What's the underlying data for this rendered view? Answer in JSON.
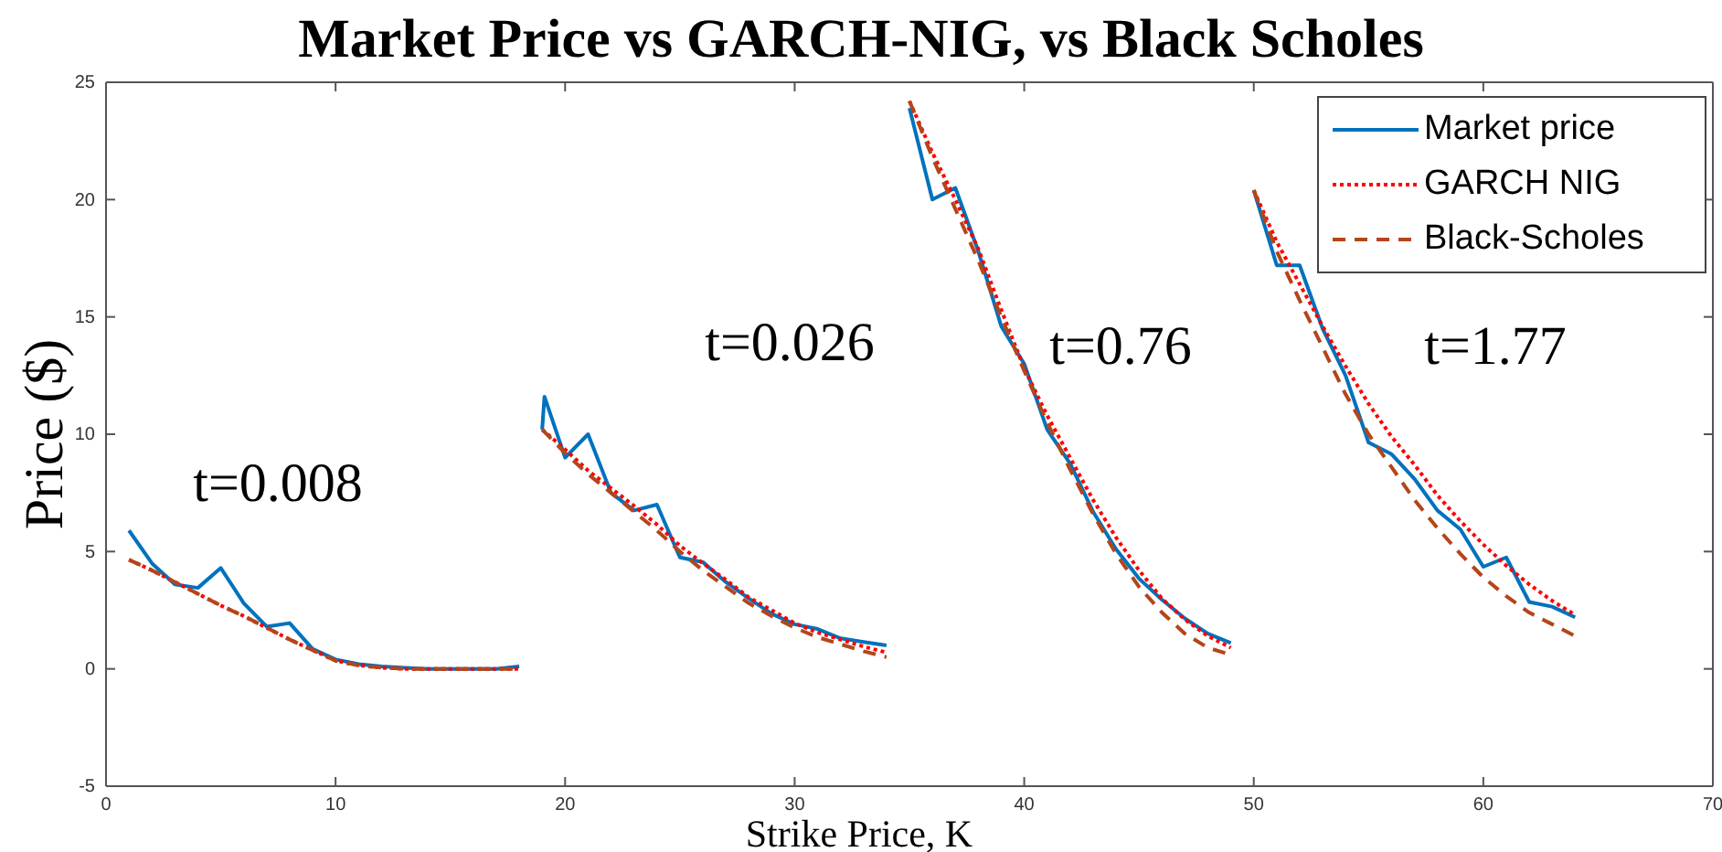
{
  "chart_data": {
    "type": "line",
    "title": "Market Price vs GARCH-NIG, vs Black Scholes",
    "xlabel": "Strike Price, K",
    "ylabel": "Price ($)",
    "xlim": [
      0,
      70
    ],
    "xticks": [
      0,
      10,
      20,
      30,
      40,
      50,
      60,
      70
    ],
    "ylim": [
      -5,
      25
    ],
    "yticks": [
      -5,
      0,
      5,
      10,
      15,
      20,
      25
    ],
    "grid": false,
    "legend": "top right",
    "marker": "none",
    "series": [
      {
        "name": "Market price",
        "color": "#0072bd",
        "line_style": "solid",
        "x": [
          1,
          2,
          3,
          4,
          5,
          6,
          7,
          8,
          9,
          10,
          11,
          12,
          13,
          14,
          15,
          16,
          17,
          18,
          18.5,
          19,
          19.1,
          20,
          21,
          22,
          23,
          24,
          25,
          26,
          27,
          28,
          29,
          30,
          31,
          32,
          33,
          34,
          34.5,
          35,
          36,
          37,
          38,
          39,
          40,
          41,
          42,
          43,
          44,
          45,
          46,
          47,
          48,
          49,
          49.5,
          50,
          51,
          52,
          53,
          54,
          55,
          56,
          57,
          58,
          59,
          60,
          61,
          62,
          63,
          64
        ],
        "values": [
          5.9,
          4.5,
          3.6,
          3.45,
          4.3,
          2.8,
          1.8,
          1.95,
          0.85,
          0.4,
          0.2,
          0.1,
          0.05,
          0,
          0,
          0,
          0,
          0.1,
          null,
          10.2,
          11.6,
          9.0,
          10.0,
          7.5,
          6.75,
          7.0,
          4.75,
          4.55,
          3.7,
          3.0,
          2.35,
          1.9,
          1.7,
          1.3,
          1.15,
          1.0,
          null,
          23.9,
          20.0,
          20.5,
          17.8,
          14.6,
          13.0,
          10.2,
          8.75,
          6.7,
          5.1,
          3.85,
          2.95,
          2.15,
          1.5,
          1.1,
          null,
          20.4,
          17.2,
          17.2,
          14.5,
          12.5,
          9.65,
          9.15,
          8.1,
          6.75,
          5.95,
          4.35,
          4.75,
          2.85,
          2.65,
          2.2
        ]
      },
      {
        "name": "GARCH NIG",
        "color": "#ff0000",
        "line_style": "dotted",
        "x": [
          1,
          2,
          3,
          4,
          5,
          6,
          7,
          8,
          9,
          10,
          11,
          12,
          13,
          14,
          15,
          16,
          17,
          18,
          18.5,
          19,
          20,
          21,
          22,
          23,
          24,
          25,
          26,
          27,
          28,
          29,
          30,
          31,
          32,
          33,
          34,
          34.5,
          35,
          36,
          37,
          38,
          39,
          40,
          41,
          42,
          43,
          44,
          45,
          46,
          47,
          48,
          49,
          49.5,
          50,
          51,
          52,
          53,
          54,
          55,
          56,
          57,
          58,
          59,
          60,
          61,
          62,
          63,
          64
        ],
        "values": [
          4.65,
          4.2,
          3.7,
          3.2,
          2.7,
          2.25,
          1.75,
          1.25,
          0.8,
          0.35,
          0.15,
          0.05,
          0,
          0,
          0,
          0,
          0,
          0,
          null,
          10.2,
          9.35,
          8.45,
          7.7,
          6.95,
          6.15,
          5.25,
          4.5,
          3.8,
          3.05,
          2.5,
          1.95,
          1.55,
          1.25,
          0.95,
          0.7,
          null,
          24.2,
          22.0,
          20.0,
          17.9,
          15.3,
          12.8,
          10.8,
          9.0,
          7.2,
          5.6,
          4.2,
          3.0,
          2.1,
          1.4,
          0.9,
          null,
          20.4,
          18.2,
          16.4,
          14.6,
          12.9,
          11.3,
          9.9,
          8.7,
          7.4,
          6.3,
          5.3,
          4.4,
          3.6,
          2.9,
          2.3
        ]
      },
      {
        "name": "Black-Scholes",
        "color": "#b4451a",
        "line_style": "dashed",
        "x": [
          1,
          2,
          3,
          4,
          5,
          6,
          7,
          8,
          9,
          10,
          11,
          12,
          13,
          14,
          15,
          16,
          17,
          18,
          18.5,
          19,
          20,
          21,
          22,
          23,
          24,
          25,
          26,
          27,
          28,
          29,
          30,
          31,
          32,
          33,
          34,
          34.5,
          35,
          36,
          37,
          38,
          39,
          40,
          41,
          42,
          43,
          44,
          45,
          46,
          47,
          48,
          49,
          49.5,
          50,
          51,
          52,
          53,
          54,
          55,
          56,
          57,
          58,
          59,
          60,
          61,
          62,
          63,
          64
        ],
        "values": [
          4.65,
          4.2,
          3.7,
          3.2,
          2.7,
          2.25,
          1.75,
          1.25,
          0.8,
          0.35,
          0.15,
          0.05,
          0,
          0,
          0,
          0,
          0,
          0,
          null,
          10.2,
          9.2,
          8.3,
          7.5,
          6.7,
          5.9,
          5.0,
          4.2,
          3.5,
          2.8,
          2.25,
          1.75,
          1.35,
          1.05,
          0.75,
          0.5,
          null,
          24.2,
          21.8,
          19.6,
          17.4,
          15.0,
          12.7,
          10.5,
          8.5,
          6.6,
          4.9,
          3.5,
          2.4,
          1.5,
          0.9,
          0.6,
          null,
          20.4,
          17.8,
          15.7,
          13.7,
          11.7,
          10.0,
          8.6,
          7.2,
          6.0,
          4.9,
          3.9,
          3.1,
          2.4,
          1.9,
          1.4
        ]
      }
    ],
    "annotations": [
      "t=0.008",
      "t=0.026",
      "t=0.76",
      "t=1.77"
    ]
  }
}
